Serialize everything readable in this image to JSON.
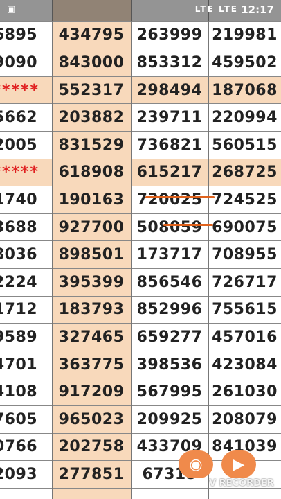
{
  "status_bar": {
    "time": "12:17",
    "network": "LTE  LTE",
    "left_icon": "notification-icon"
  },
  "rows": [
    {
      "c0": "",
      "c1": "",
      "c2": "",
      "c3": "",
      "peach": false
    },
    {
      "c0": "6895",
      "c1": "434795",
      "c2": "263999",
      "c3": "219981",
      "peach": false
    },
    {
      "c0": "9090",
      "c1": "843000",
      "c2": "853312",
      "c3": "459502",
      "peach": false
    },
    {
      "c0": "*****",
      "c1": "552317",
      "c2": "298494",
      "c3": "187068",
      "peach": true
    },
    {
      "c0": "5662",
      "c1": "203882",
      "c2": "239711",
      "c3": "220994",
      "peach": false
    },
    {
      "c0": "2005",
      "c1": "831529",
      "c2": "736821",
      "c3": "560515",
      "peach": false
    },
    {
      "c0": "*****",
      "c1": "618908",
      "c2": "615217",
      "c3": "268725",
      "peach": true
    },
    {
      "c0": "1740",
      "c1": "190163",
      "c2": "720025",
      "c3": "724525",
      "peach": false
    },
    {
      "c0": "3688",
      "c1": "927700",
      "c2": "508059",
      "c3": "690075",
      "peach": false
    },
    {
      "c0": "8036",
      "c1": "898501",
      "c2": "173717",
      "c3": "708955",
      "peach": false
    },
    {
      "c0": "2224",
      "c1": "395399",
      "c2": "856546",
      "c3": "726717",
      "peach": false
    },
    {
      "c0": "1712",
      "c1": "183793",
      "c2": "852996",
      "c3": "755615",
      "peach": false
    },
    {
      "c0": "9589",
      "c1": "327465",
      "c2": "659277",
      "c3": "457016",
      "peach": false
    },
    {
      "c0": "4701",
      "c1": "363775",
      "c2": "398536",
      "c3": "423084",
      "peach": false
    },
    {
      "c0": "4108",
      "c1": "917209",
      "c2": "567995",
      "c3": "261030",
      "peach": false
    },
    {
      "c0": "7605",
      "c1": "965023",
      "c2": "209925",
      "c3": "208079",
      "peach": false
    },
    {
      "c0": "0766",
      "c1": "202758",
      "c2": "433709",
      "c3": "841039",
      "peach": false
    },
    {
      "c0": "2093",
      "c1": "277851",
      "c2": "67315",
      "c3": "",
      "peach": false
    }
  ],
  "recorder": {
    "label": "V RECORDER",
    "camera_icon": "camera-icon",
    "video_icon": "video-camera-icon"
  },
  "colors": {
    "peach": "#f8d9bb",
    "stars": "#e02020",
    "underline": "#e0621c"
  }
}
